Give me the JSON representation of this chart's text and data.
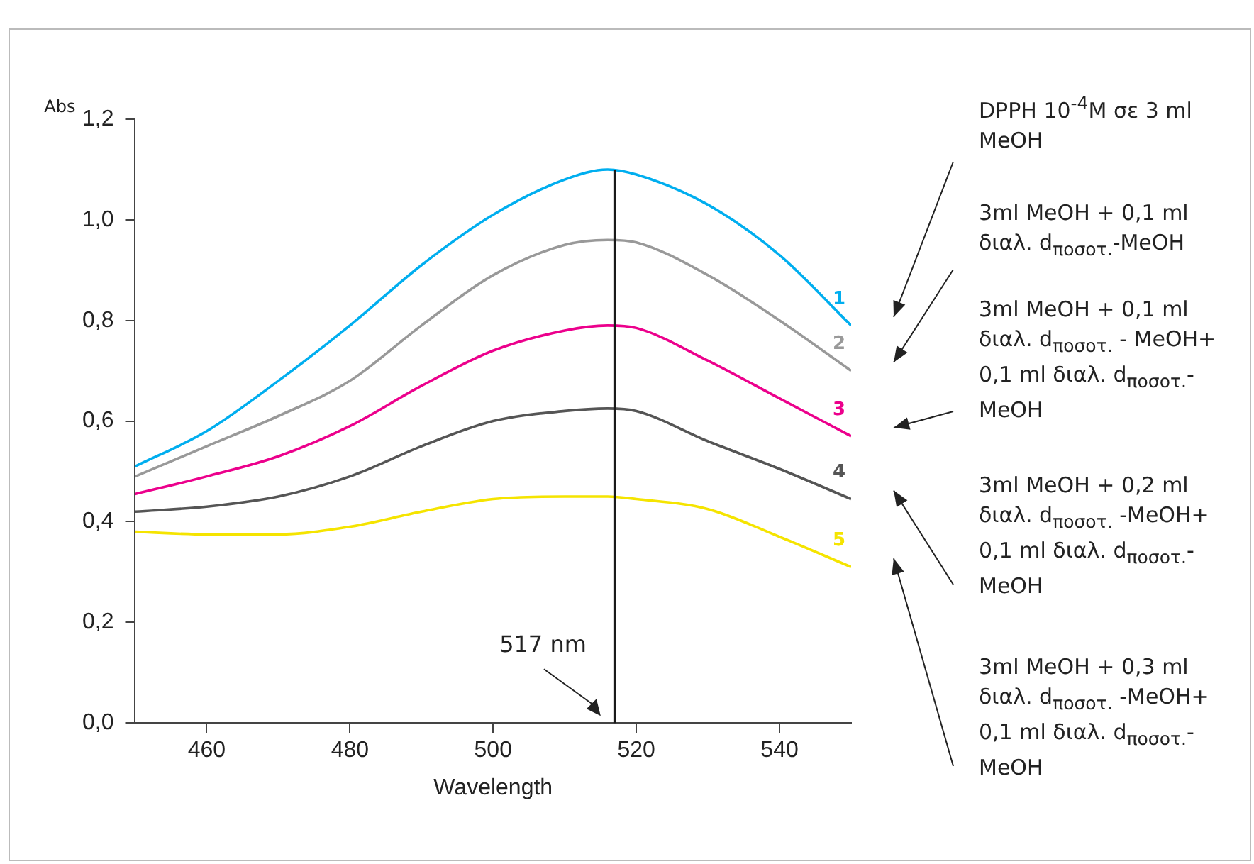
{
  "chart_data": {
    "type": "line",
    "xlabel": "Wavelength",
    "ylabel": "Abs",
    "x": [
      450,
      460,
      470,
      480,
      490,
      500,
      510,
      516,
      520,
      530,
      540,
      550
    ],
    "xlim": [
      450,
      550
    ],
    "xticks": [
      460,
      480,
      500,
      520,
      540
    ],
    "ylim": [
      0,
      1.2
    ],
    "yticks": [
      {
        "value": 0,
        "label": "0,0"
      },
      {
        "value": 0.2,
        "label": "0,2"
      },
      {
        "value": 0.4,
        "label": "0,4"
      },
      {
        "value": 0.6,
        "label": "0,6"
      },
      {
        "value": 0.8,
        "label": "0,8"
      },
      {
        "value": 1.0,
        "label": "1,0"
      },
      {
        "value": 1.2,
        "label": "1,2"
      }
    ],
    "grid": false,
    "legend": false,
    "marker": "none",
    "line_style": "solid",
    "series": [
      {
        "name": "1",
        "color": "#00aeef",
        "values": [
          0.51,
          0.58,
          0.68,
          0.79,
          0.91,
          1.01,
          1.08,
          1.1,
          1.09,
          1.03,
          0.93,
          0.79
        ]
      },
      {
        "name": "2",
        "color": "#999999",
        "values": [
          0.49,
          0.55,
          0.61,
          0.68,
          0.79,
          0.89,
          0.95,
          0.96,
          0.955,
          0.89,
          0.8,
          0.7
        ]
      },
      {
        "name": "3",
        "color": "#ec008c",
        "values": [
          0.455,
          0.49,
          0.53,
          0.59,
          0.67,
          0.74,
          0.78,
          0.79,
          0.785,
          0.72,
          0.645,
          0.57
        ]
      },
      {
        "name": "4",
        "color": "#555555",
        "values": [
          0.42,
          0.43,
          0.45,
          0.49,
          0.55,
          0.6,
          0.62,
          0.625,
          0.62,
          0.56,
          0.505,
          0.445
        ]
      },
      {
        "name": "5",
        "color": "#f5e400",
        "values": [
          0.38,
          0.375,
          0.375,
          0.39,
          0.42,
          0.445,
          0.45,
          0.45,
          0.445,
          0.425,
          0.37,
          0.31
        ]
      }
    ],
    "ref_lines": [
      {
        "axis": "x",
        "value": 517,
        "label": "517 nm",
        "color": "#1a1a1a"
      }
    ],
    "annotations": [
      "DPPH 10$^{-4}$M σε 3 ml MeOH",
      "3ml MeOH + 0,1 ml διαλ. d$_{ποσοτ.}$-MeOH",
      "3ml MeOH + 0,1 ml διαλ. d$_{ποσοτ.}$ - MeOH+ 0,1 ml διαλ. d$_{ποσοτ.}$-MeOH",
      "3ml MeOH + 0,2 ml διαλ. d$_{ποσοτ.}$ -MeOH+ 0,1 ml διαλ. d$_{ποσοτ.}$-MeOH",
      "3ml MeOH + 0,3 ml διαλ. d$_{ποσοτ.}$ -MeOH+ 0,1 ml διαλ. d$_{ποσοτ.}$-MeOH"
    ]
  }
}
